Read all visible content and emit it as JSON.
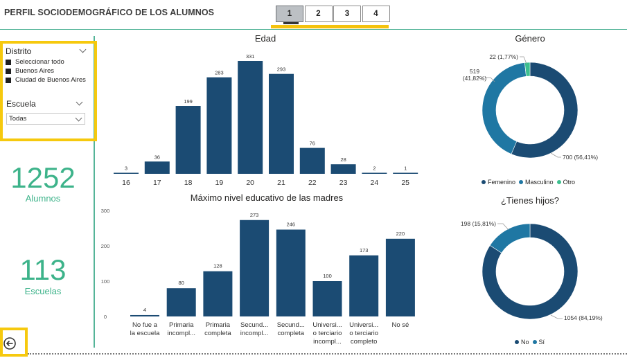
{
  "header": {
    "title": "PERFIL SOCIODEMOGRÁFICO DE LOS ALUMNOS",
    "pages": [
      "1",
      "2",
      "3",
      "4"
    ],
    "active_page": "1"
  },
  "filters": {
    "distrito": {
      "label": "Distrito",
      "items": [
        "Seleccionar todo",
        "Buenos Aires",
        "Ciudad de Buenos Aires"
      ]
    },
    "escuela": {
      "label": "Escuela",
      "selected": "Todas"
    }
  },
  "kpis": {
    "alumnos": {
      "value": "1252",
      "label": "Alumnos"
    },
    "escuelas": {
      "value": "113",
      "label": "Escuelas"
    }
  },
  "colors": {
    "dark_blue": "#1b4b73",
    "mid_blue": "#1f77a3",
    "teal": "#3dbf8f",
    "accent_green": "#3db38a",
    "highlight_yellow": "#f6c90e"
  },
  "chart_data": [
    {
      "type": "bar",
      "title": "Edad",
      "categories": [
        "16",
        "17",
        "18",
        "19",
        "20",
        "21",
        "22",
        "23",
        "24",
        "25"
      ],
      "values": [
        3,
        36,
        199,
        283,
        331,
        293,
        76,
        28,
        2,
        1
      ],
      "data_labels": true,
      "ylim": [
        0,
        331
      ]
    },
    {
      "type": "donut",
      "title": "Género",
      "series": [
        {
          "name": "Femenino",
          "value": 700,
          "label": "700 (56,41%)",
          "color": "#1b4b73"
        },
        {
          "name": "Masculino",
          "value": 519,
          "label": "519 (41,82%)",
          "color": "#1f77a3"
        },
        {
          "name": "Otro",
          "value": 22,
          "label": "22 (1,77%)",
          "color": "#3dbf8f"
        }
      ],
      "legend_position": "bottom"
    },
    {
      "type": "bar",
      "title": "Máximo nivel educativo de las madres",
      "categories": [
        [
          "No fue a",
          "la escuela"
        ],
        [
          "Primaria",
          "incompl..."
        ],
        [
          "Primaria",
          "completa"
        ],
        [
          "Secund...",
          "incompl..."
        ],
        [
          "Secund...",
          "completa"
        ],
        [
          "Universi...",
          "o terciario",
          "incompl..."
        ],
        [
          "Universi...",
          "o terciario",
          "completo"
        ],
        [
          "No sé"
        ]
      ],
      "values": [
        4,
        80,
        128,
        273,
        246,
        100,
        173,
        220
      ],
      "yticks": [
        "0",
        "100",
        "200",
        "300"
      ],
      "ylim": [
        0,
        300
      ],
      "data_labels": true
    },
    {
      "type": "donut",
      "title": "¿Tienes hijos?",
      "series": [
        {
          "name": "No",
          "value": 1054,
          "label": "1054 (84,19%)",
          "color": "#1b4b73"
        },
        {
          "name": "Sí",
          "value": 198,
          "label": "198 (15,81%)",
          "color": "#1f77a3"
        }
      ],
      "legend_position": "bottom"
    }
  ]
}
